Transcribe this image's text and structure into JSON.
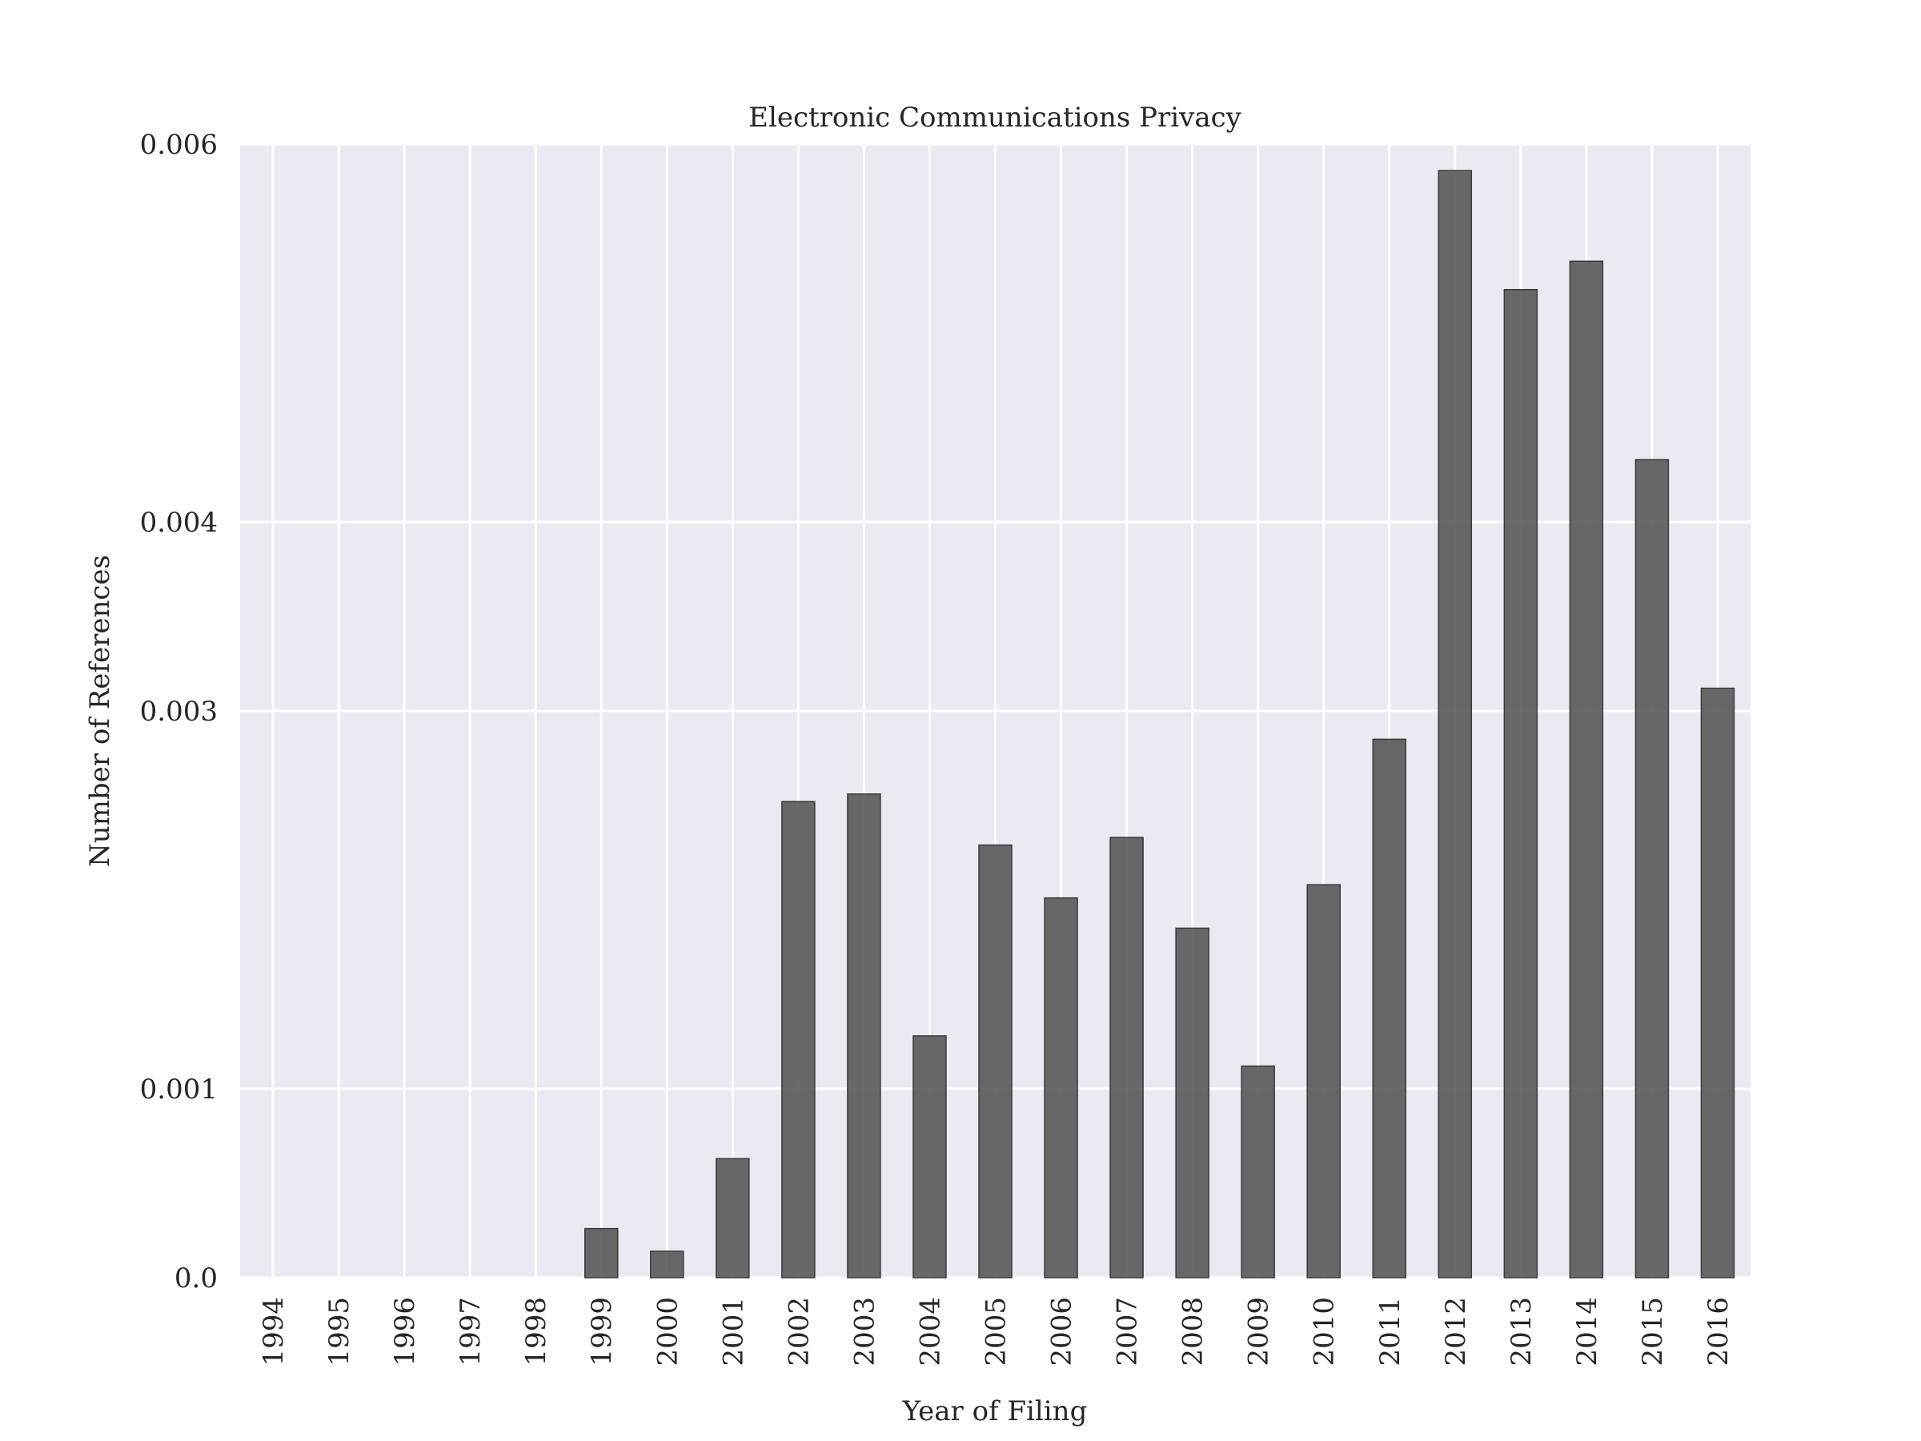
{
  "chart_data": {
    "type": "bar",
    "title": "Electronic Communications Privacy",
    "xlabel": "Year of Filing",
    "ylabel": "Number of References",
    "categories": [
      "1994",
      "1995",
      "1996",
      "1997",
      "1998",
      "1999",
      "2000",
      "2001",
      "2002",
      "2003",
      "2004",
      "2005",
      "2006",
      "2007",
      "2008",
      "2009",
      "2010",
      "2011",
      "2012",
      "2013",
      "2014",
      "2015",
      "2016"
    ],
    "values": [
      0,
      0,
      0,
      0,
      0,
      0.00026,
      0.00014,
      0.00063,
      0.00252,
      0.00256,
      0.00128,
      0.00229,
      0.00201,
      0.00233,
      0.00185,
      0.00112,
      0.00208,
      0.00285,
      0.00586,
      0.00523,
      0.00538,
      0.00433,
      0.00312
    ],
    "yticks": [
      0.0,
      0.001,
      0.003,
      0.004,
      0.006
    ],
    "ytick_labels": [
      "0.0",
      "0.001",
      "0.003",
      "0.004",
      "0.006"
    ],
    "ylim": [
      0,
      0.006
    ],
    "grid": true,
    "colors": {
      "background": "#eaeaf2",
      "grid": "#ffffff",
      "bar": "#595959",
      "bar_edge": "#3a3a3a"
    }
  }
}
